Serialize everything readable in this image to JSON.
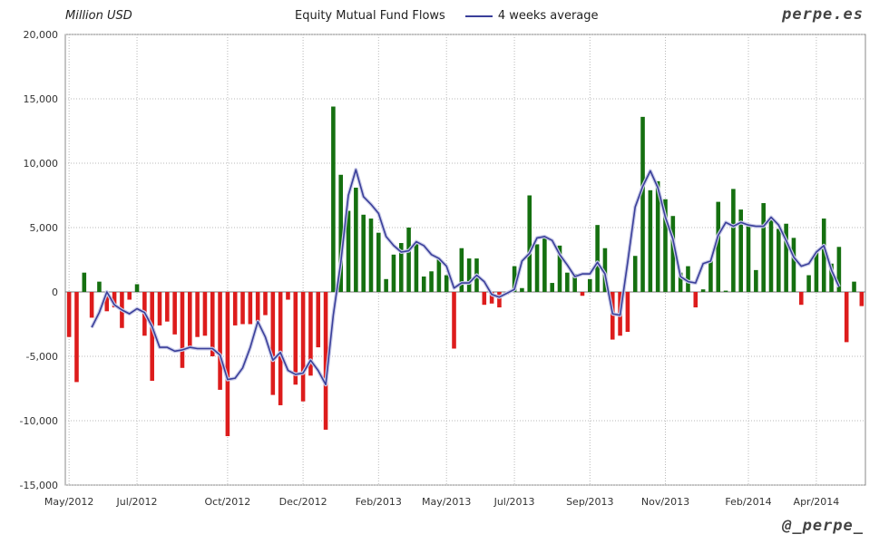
{
  "header": {
    "unit_label": "Million USD",
    "brand": "perpe.es",
    "handle": "@_perpe_"
  },
  "colors": {
    "positive": "#157010",
    "negative": "#dd1c1c",
    "average": "#3a3f9a",
    "grid": "#b8b8b8"
  },
  "chart_data": {
    "type": "bar",
    "title": "Equity Mutual Fund Flows",
    "series": [
      {
        "name": "Equity Mutual Fund Flows",
        "kind": "bar"
      },
      {
        "name": "4 weeks average",
        "kind": "line"
      }
    ],
    "ylim": [
      -15000,
      20000
    ],
    "yticks": [
      "-15,000",
      "-10,000",
      "-5,000",
      "0",
      "5,000",
      "10,000",
      "15,000",
      "20,000"
    ],
    "ytick_values": [
      -15000,
      -10000,
      -5000,
      0,
      5000,
      10000,
      15000,
      20000
    ],
    "xticks": [
      "May/2012",
      "Jul/2012",
      "Oct/2012",
      "Dec/2012",
      "Feb/2013",
      "May/2013",
      "Jul/2013",
      "Sep/2013",
      "Nov/2013",
      "Feb/2014",
      "Apr/2014"
    ],
    "xtick_index": [
      0,
      9,
      21,
      31,
      41,
      50,
      59,
      69,
      79,
      90,
      99
    ],
    "grid": true,
    "legend": "top",
    "values": [
      -3500,
      -7000,
      1500,
      -2000,
      800,
      -1500,
      -1200,
      -2800,
      -600,
      600,
      -3400,
      -6900,
      -2600,
      -2300,
      -3300,
      -5900,
      -4300,
      -3500,
      -3400,
      -5000,
      -7600,
      -11200,
      -2600,
      -2500,
      -2500,
      -2300,
      -1800,
      -8000,
      -8800,
      -600,
      -7200,
      -8500,
      -6500,
      -4300,
      -10700,
      14400,
      9100,
      6300,
      8100,
      6000,
      5700,
      4600,
      1000,
      2900,
      3800,
      5000,
      3800,
      1200,
      1600,
      2600,
      1300,
      -4400,
      3400,
      2600,
      2600,
      -1000,
      -900,
      -1200,
      -200,
      2000,
      300,
      7500,
      3700,
      4200,
      700,
      3600,
      1500,
      1400,
      -300,
      1000,
      5200,
      3400,
      -3700,
      -3400,
      -3100,
      2800,
      13600,
      7900,
      8600,
      7200,
      5900,
      1500,
      2000,
      -1200,
      200,
      2400,
      7000,
      100,
      8000,
      6400,
      5300,
      1700,
      6900,
      5800,
      4900,
      5300,
      4200,
      -1000,
      1300,
      3100,
      5700,
      2200,
      3500,
      -3900,
      800,
      -1100
    ],
    "average": [
      null,
      null,
      null,
      -2750,
      -1600,
      0,
      -1000,
      -1400,
      -1700,
      -1300,
      -1600,
      -2700,
      -4300,
      -4300,
      -4600,
      -4500,
      -4300,
      -4400,
      -4400,
      -4400,
      -4900,
      -6800,
      -6700,
      -5900,
      -4300,
      -2300,
      -3500,
      -5300,
      -4700,
      -6100,
      -6400,
      -6300,
      -5300,
      -6100,
      -7200,
      -1800,
      2300,
      7500,
      9500,
      7400,
      6800,
      6100,
      4300,
      3600,
      3100,
      3200,
      3900,
      3600,
      2900,
      2600,
      2000,
      300,
      700,
      700,
      1300,
      800,
      -200,
      -400,
      -100,
      200,
      2400,
      3000,
      4200,
      4300,
      4000,
      2900,
      2100,
      1200,
      1400,
      1400,
      2300,
      1400,
      -1700,
      -1800,
      2300,
      6600,
      8200,
      9400,
      8100,
      5800,
      4100,
      1200,
      800,
      700,
      2200,
      2400,
      4400,
      5400,
      5100,
      5400,
      5200,
      5100,
      5100,
      5800,
      5200,
      4000,
      2700,
      2000,
      2200,
      3100,
      3600,
      1700,
      400,
      null,
      null,
      null
    ]
  }
}
